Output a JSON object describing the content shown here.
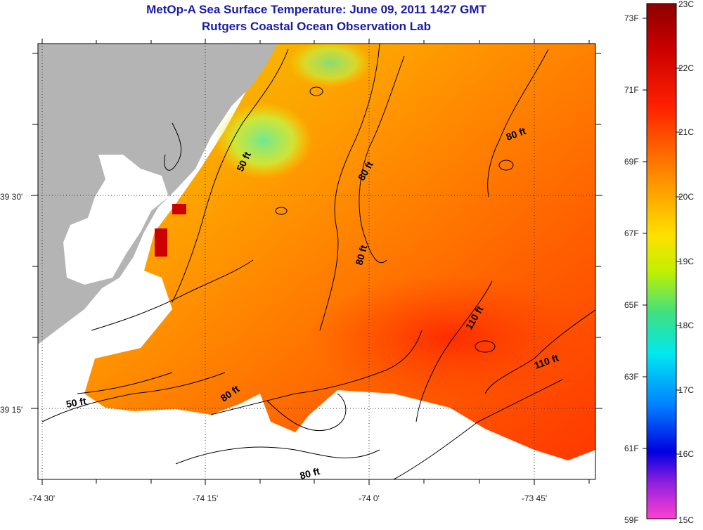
{
  "title": "MetOp-A Sea Surface Temperature:  June 09, 2011 1427 GMT",
  "subtitle": "Rutgers Coastal Ocean Observation Lab",
  "lon_labels": [
    "-74 30'",
    "-74 15'",
    "-74 0'",
    "-73 45'"
  ],
  "lat_labels": [
    "39 30'",
    "39 15'"
  ],
  "colorbar": {
    "fahrenheit": [
      "73F",
      "71F",
      "69F",
      "67F",
      "65F",
      "63F",
      "61F",
      "59F"
    ],
    "celsius": [
      "23C",
      "22C",
      "21C",
      "20C",
      "19C",
      "18C",
      "17C",
      "16C",
      "15C"
    ]
  },
  "contour_labels": [
    {
      "text": "50 ft",
      "id": "50ft-north"
    },
    {
      "text": "80 ft",
      "id": "80ft-center-north"
    },
    {
      "text": "80 ft",
      "id": "80ft-northeast"
    },
    {
      "text": "80 ft",
      "id": "80ft-center"
    },
    {
      "text": "110 ft",
      "id": "110ft-center"
    },
    {
      "text": "110 ft",
      "id": "110ft-east"
    },
    {
      "text": "80 ft",
      "id": "80ft-southwest"
    },
    {
      "text": "50 ft",
      "id": "50ft-south"
    },
    {
      "text": "80 ft",
      "id": "80ft-south"
    }
  ]
}
